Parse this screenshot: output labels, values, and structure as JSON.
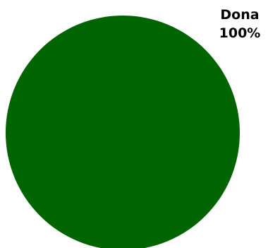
{
  "chart_data": {
    "type": "pie",
    "categories": [
      "Dona"
    ],
    "values": [
      100
    ],
    "slice_labels": [
      {
        "name": "Dona",
        "percent_text": "100%"
      }
    ],
    "colors": [
      "#006400"
    ],
    "legend": "none"
  }
}
